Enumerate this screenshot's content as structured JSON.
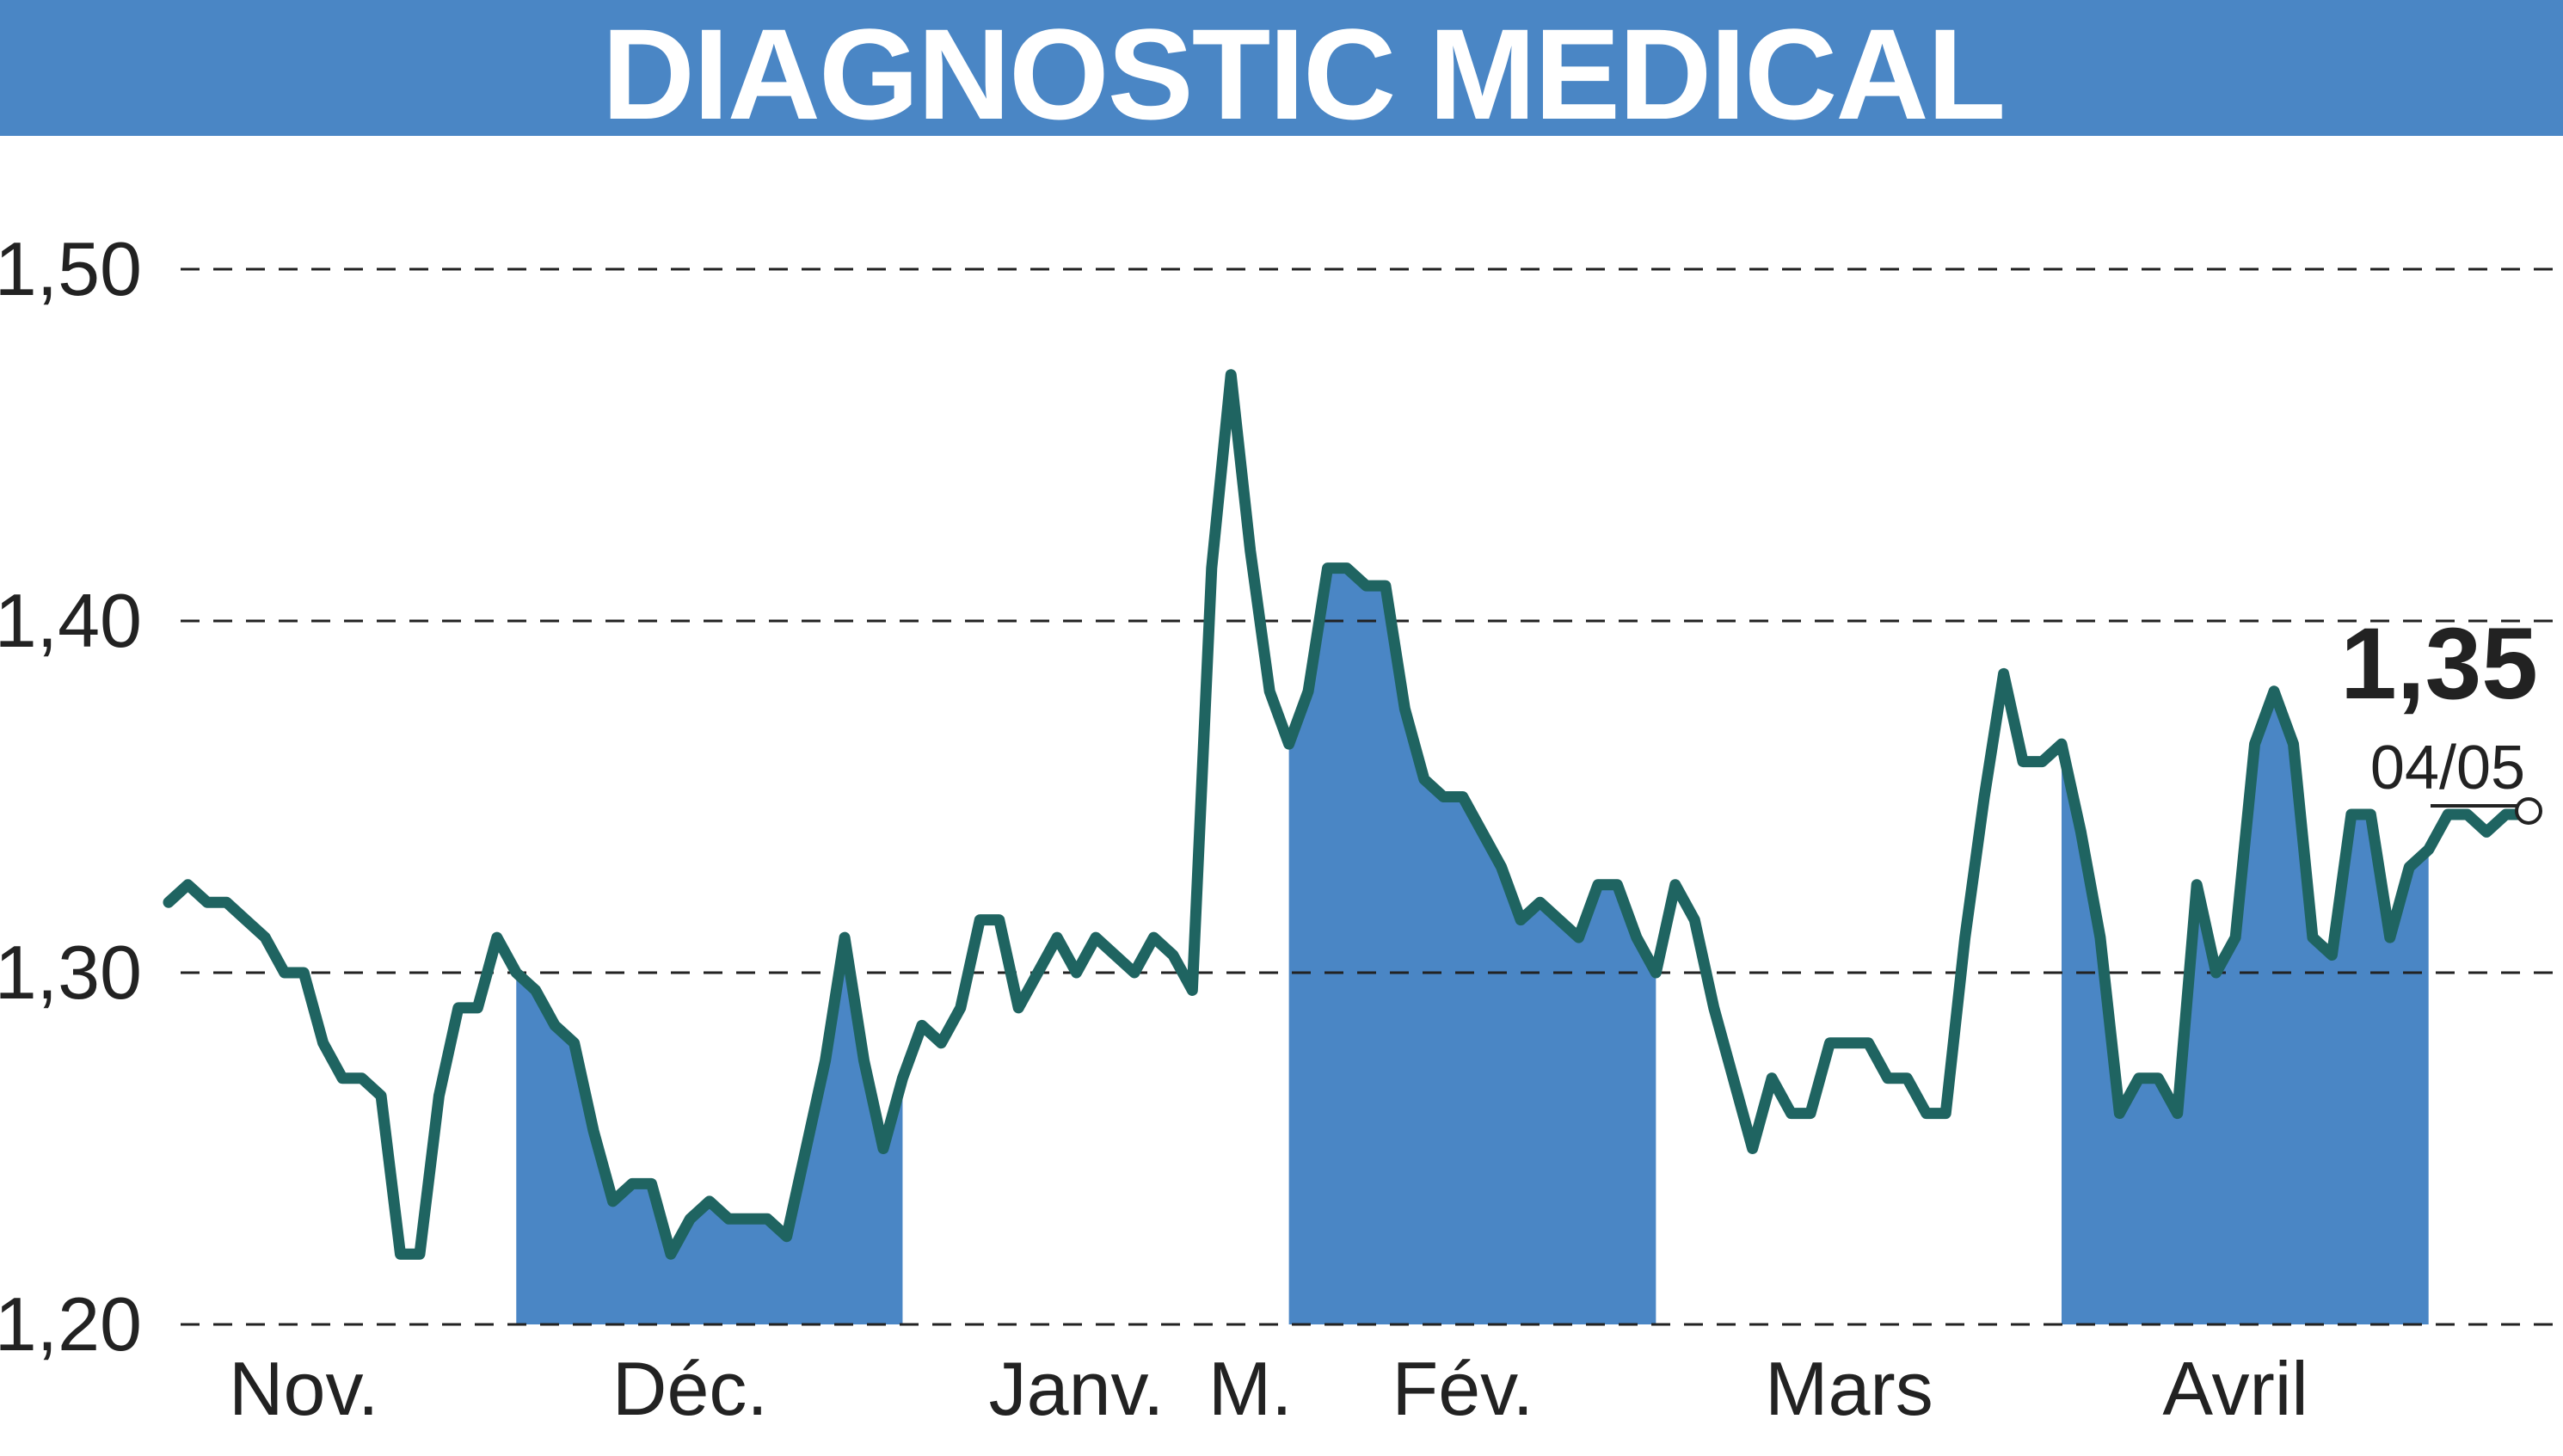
{
  "chart_data": {
    "type": "line",
    "title": "DIAGNOSTIC MEDICAL",
    "xlabel": "",
    "ylabel": "",
    "ylim": [
      1.2,
      1.5
    ],
    "yticks": [
      "1,20",
      "1,30",
      "1,40",
      "1,50"
    ],
    "grid": true,
    "x_labels": [
      {
        "label": "Nov.",
        "index": 7
      },
      {
        "label": "Déc.",
        "index": 27
      },
      {
        "label": "Janv.",
        "index": 47
      },
      {
        "label": "M.",
        "index": 56
      },
      {
        "label": "Fév.",
        "index": 67
      },
      {
        "label": "Mars",
        "index": 87
      },
      {
        "label": "Avril",
        "index": 107
      }
    ],
    "shaded_bands": [
      {
        "start": 18,
        "end": 38
      },
      {
        "start": 58,
        "end": 77
      },
      {
        "start": 98,
        "end": 117
      }
    ],
    "last_value": "1,35",
    "last_date": "04/05",
    "colors": {
      "banner": "#4a86c5",
      "line": "#1f6461",
      "area": "#4a86c5"
    },
    "series": [
      {
        "values": [
          1.32,
          1.325,
          1.32,
          1.32,
          1.315,
          1.31,
          1.3,
          1.3,
          1.28,
          1.27,
          1.27,
          1.265,
          1.22,
          1.22,
          1.265,
          1.29,
          1.29,
          1.31,
          1.3,
          1.295,
          1.285,
          1.28,
          1.255,
          1.235,
          1.24,
          1.24,
          1.22,
          1.23,
          1.235,
          1.23,
          1.23,
          1.23,
          1.225,
          1.25,
          1.275,
          1.31,
          1.275,
          1.25,
          1.27,
          1.285,
          1.28,
          1.29,
          1.315,
          1.315,
          1.29,
          1.3,
          1.31,
          1.3,
          1.31,
          1.305,
          1.3,
          1.31,
          1.305,
          1.295,
          1.415,
          1.47,
          1.42,
          1.38,
          1.365,
          1.38,
          1.415,
          1.415,
          1.41,
          1.41,
          1.375,
          1.355,
          1.35,
          1.35,
          1.34,
          1.33,
          1.315,
          1.32,
          1.315,
          1.31,
          1.325,
          1.325,
          1.31,
          1.3,
          1.325,
          1.315,
          1.29,
          1.27,
          1.25,
          1.27,
          1.26,
          1.26,
          1.28,
          1.28,
          1.28,
          1.27,
          1.27,
          1.26,
          1.26,
          1.31,
          1.35,
          1.385,
          1.36,
          1.36,
          1.365,
          1.34,
          1.31,
          1.26,
          1.27,
          1.27,
          1.26,
          1.325,
          1.3,
          1.31,
          1.365,
          1.38,
          1.365,
          1.31,
          1.305,
          1.345,
          1.345,
          1.31,
          1.33,
          1.335,
          1.345,
          1.345,
          1.34,
          1.345,
          1.345
        ]
      }
    ]
  }
}
